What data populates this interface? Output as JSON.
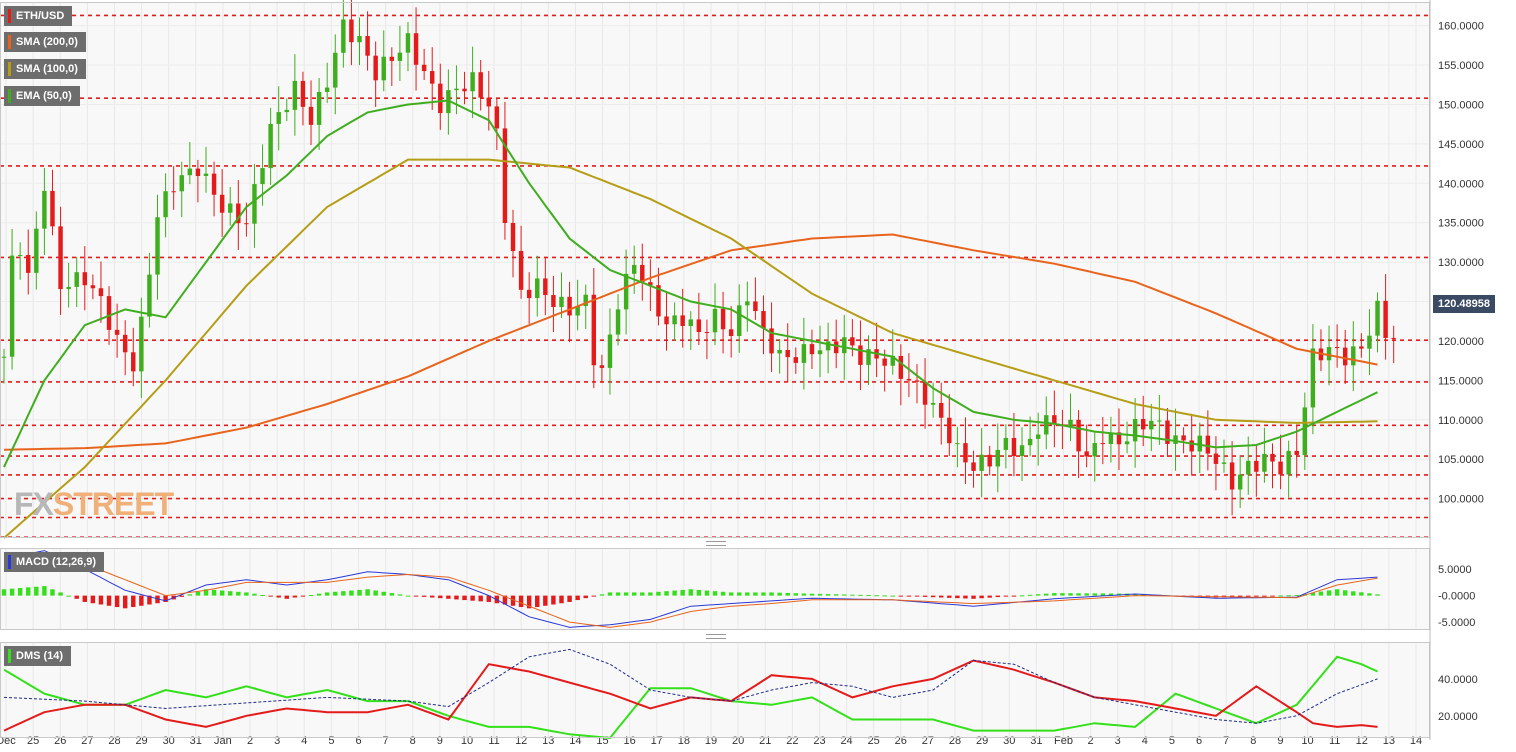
{
  "symbol": "ETH/USD",
  "indicators": {
    "sma200": {
      "label": "SMA (200,0)",
      "color": "#e8641c"
    },
    "sma100": {
      "label": "SMA (100,0)",
      "color": "#b59d16"
    },
    "ema50": {
      "label": "EMA (50,0)",
      "color": "#3fae1e"
    },
    "macd": {
      "label": "MACD (12,26,9)",
      "color_macd": "#2a38d8",
      "color_signal": "#e8641c"
    },
    "dms": {
      "label": "DMS (14)",
      "color_plus": "#33e01a",
      "color_minus": "#e31b1b",
      "color_adx": "#1f2b8a"
    }
  },
  "current_price_label": "120.48958",
  "logo": {
    "part1": "FX",
    "part2": "STREET"
  },
  "chart_data": [
    {
      "type": "candlestick",
      "ylim": [
        95,
        163
      ],
      "y_ticks": [
        "160.0000",
        "155.0000",
        "150.0000",
        "145.0000",
        "140.0000",
        "135.0000",
        "130.0000",
        "125.0000",
        "120.0000",
        "115.0000",
        "110.0000",
        "105.0000",
        "100.0000"
      ],
      "x_ticks": [
        "Dec",
        "25",
        "26",
        "27",
        "28",
        "29",
        "30",
        "31",
        "Jan",
        "2",
        "3",
        "4",
        "5",
        "6",
        "7",
        "8",
        "9",
        "10",
        "11",
        "12",
        "13",
        "14",
        "15",
        "16",
        "17",
        "18",
        "19",
        "20",
        "21",
        "22",
        "23",
        "24",
        "25",
        "26",
        "27",
        "28",
        "29",
        "30",
        "31",
        "Feb",
        "2",
        "3",
        "4",
        "5",
        "6",
        "7",
        "8",
        "9",
        "10",
        "11",
        "12",
        "13",
        "14"
      ],
      "horizontal_levels": [
        161.3,
        150.8,
        142.2,
        130.6,
        120.1,
        114.8,
        109.3,
        105.4,
        103.0,
        100.0,
        97.6,
        95.1
      ],
      "close_anchors": [
        [
          0,
          118
        ],
        [
          1,
          130
        ],
        [
          2,
          132
        ],
        [
          3,
          128
        ],
        [
          5,
          140
        ],
        [
          7,
          127
        ],
        [
          10,
          128
        ],
        [
          12,
          125
        ],
        [
          14,
          120
        ],
        [
          16,
          117
        ],
        [
          17,
          122
        ],
        [
          19,
          136
        ],
        [
          21,
          140
        ],
        [
          24,
          142
        ],
        [
          27,
          137
        ],
        [
          30,
          135
        ],
        [
          33,
          147
        ],
        [
          36,
          152
        ],
        [
          38,
          148
        ],
        [
          40,
          153
        ],
        [
          42,
          160
        ],
        [
          44,
          158
        ],
        [
          46,
          154
        ],
        [
          48,
          156
        ],
        [
          50,
          158
        ],
        [
          52,
          154
        ],
        [
          54,
          150
        ],
        [
          56,
          152
        ],
        [
          58,
          153
        ],
        [
          60,
          150
        ],
        [
          61,
          146
        ],
        [
          62,
          136
        ],
        [
          64,
          126
        ],
        [
          66,
          127
        ],
        [
          68,
          125
        ],
        [
          70,
          124
        ],
        [
          72,
          125
        ],
        [
          73,
          118
        ],
        [
          74,
          116
        ],
        [
          76,
          125
        ],
        [
          78,
          130
        ],
        [
          80,
          126
        ],
        [
          82,
          122
        ],
        [
          84,
          123
        ],
        [
          86,
          121
        ],
        [
          88,
          123
        ],
        [
          90,
          121
        ],
        [
          92,
          126
        ],
        [
          94,
          121
        ],
        [
          96,
          118
        ],
        [
          98,
          118
        ],
        [
          100,
          119
        ],
        [
          102,
          119
        ],
        [
          104,
          120
        ],
        [
          106,
          118
        ],
        [
          108,
          118
        ],
        [
          110,
          117
        ],
        [
          112,
          115
        ],
        [
          114,
          113
        ],
        [
          116,
          110
        ],
        [
          118,
          106
        ],
        [
          120,
          104
        ],
        [
          122,
          105
        ],
        [
          124,
          107
        ],
        [
          126,
          106
        ],
        [
          128,
          109
        ],
        [
          130,
          110
        ],
        [
          132,
          109
        ],
        [
          134,
          105
        ],
        [
          136,
          108
        ],
        [
          138,
          107
        ],
        [
          140,
          109
        ],
        [
          142,
          110
        ],
        [
          144,
          108
        ],
        [
          146,
          107
        ],
        [
          148,
          107
        ],
        [
          150,
          105
        ],
        [
          152,
          102
        ],
        [
          154,
          104
        ],
        [
          156,
          105
        ],
        [
          158,
          104
        ],
        [
          160,
          106
        ],
        [
          162,
          118
        ],
        [
          164,
          119
        ],
        [
          166,
          118
        ],
        [
          168,
          119
        ],
        [
          170,
          124
        ],
        [
          171,
          121
        ],
        [
          172,
          120.5
        ]
      ],
      "sma200_anchors": [
        [
          0,
          106.2
        ],
        [
          10,
          106.4
        ],
        [
          20,
          107.0
        ],
        [
          30,
          109.0
        ],
        [
          40,
          112.0
        ],
        [
          50,
          115.5
        ],
        [
          60,
          120.0
        ],
        [
          70,
          124.0
        ],
        [
          80,
          128.0
        ],
        [
          90,
          131.5
        ],
        [
          100,
          133.0
        ],
        [
          110,
          133.5
        ],
        [
          120,
          131.5
        ],
        [
          130,
          129.8
        ],
        [
          140,
          127.5
        ],
        [
          150,
          123.5
        ],
        [
          160,
          119.0
        ],
        [
          170,
          117.0
        ]
      ],
      "sma100_anchors": [
        [
          0,
          95
        ],
        [
          10,
          104
        ],
        [
          20,
          115
        ],
        [
          30,
          127
        ],
        [
          40,
          137
        ],
        [
          50,
          143
        ],
        [
          60,
          143
        ],
        [
          70,
          142
        ],
        [
          80,
          138
        ],
        [
          90,
          133
        ],
        [
          100,
          126
        ],
        [
          110,
          121
        ],
        [
          120,
          118
        ],
        [
          130,
          115
        ],
        [
          140,
          112
        ],
        [
          150,
          110
        ],
        [
          160,
          109.6
        ],
        [
          170,
          109.8
        ]
      ],
      "ema50_anchors": [
        [
          0,
          104
        ],
        [
          5,
          115
        ],
        [
          10,
          122
        ],
        [
          15,
          124
        ],
        [
          20,
          123
        ],
        [
          25,
          130
        ],
        [
          30,
          137
        ],
        [
          35,
          141
        ],
        [
          40,
          146
        ],
        [
          45,
          149
        ],
        [
          50,
          150
        ],
        [
          55,
          150.5
        ],
        [
          60,
          148
        ],
        [
          65,
          140
        ],
        [
          70,
          133
        ],
        [
          75,
          129
        ],
        [
          80,
          127
        ],
        [
          85,
          125
        ],
        [
          90,
          124
        ],
        [
          95,
          121
        ],
        [
          100,
          120
        ],
        [
          105,
          119
        ],
        [
          110,
          118
        ],
        [
          115,
          114
        ],
        [
          120,
          111
        ],
        [
          125,
          110
        ],
        [
          130,
          109.5
        ],
        [
          135,
          108.5
        ],
        [
          140,
          108
        ],
        [
          145,
          107.3
        ],
        [
          150,
          106.5
        ],
        [
          155,
          106.8
        ],
        [
          160,
          108.5
        ],
        [
          165,
          111
        ],
        [
          170,
          113.5
        ]
      ]
    },
    {
      "type": "line",
      "y_ticks": [
        "5.0000",
        "-0.0000",
        "-5.0000"
      ],
      "ylim": [
        -6.5,
        9
      ],
      "macd_anchors": [
        [
          0,
          7
        ],
        [
          5,
          8.5
        ],
        [
          10,
          5
        ],
        [
          15,
          1
        ],
        [
          20,
          -1
        ],
        [
          25,
          2
        ],
        [
          30,
          3
        ],
        [
          35,
          2
        ],
        [
          40,
          3
        ],
        [
          45,
          4.5
        ],
        [
          50,
          4
        ],
        [
          55,
          3
        ],
        [
          60,
          0
        ],
        [
          65,
          -4
        ],
        [
          70,
          -6
        ],
        [
          75,
          -5.5
        ],
        [
          80,
          -4.5
        ],
        [
          85,
          -2
        ],
        [
          90,
          -1.5
        ],
        [
          95,
          -1
        ],
        [
          100,
          -0.5
        ],
        [
          110,
          -0.8
        ],
        [
          120,
          -2
        ],
        [
          130,
          -0.6
        ],
        [
          140,
          0.3
        ],
        [
          150,
          -0.5
        ],
        [
          160,
          -0.3
        ],
        [
          165,
          3
        ],
        [
          170,
          3.5
        ]
      ],
      "signal_anchors": [
        [
          0,
          6
        ],
        [
          5,
          7
        ],
        [
          10,
          6
        ],
        [
          15,
          3
        ],
        [
          20,
          0
        ],
        [
          25,
          1
        ],
        [
          30,
          2.5
        ],
        [
          35,
          2.5
        ],
        [
          40,
          2.5
        ],
        [
          45,
          3.5
        ],
        [
          50,
          4
        ],
        [
          55,
          3.5
        ],
        [
          60,
          1
        ],
        [
          65,
          -2
        ],
        [
          70,
          -5
        ],
        [
          75,
          -6
        ],
        [
          80,
          -5
        ],
        [
          85,
          -3
        ],
        [
          90,
          -2
        ],
        [
          95,
          -1.5
        ],
        [
          100,
          -0.8
        ],
        [
          110,
          -0.8
        ],
        [
          120,
          -1.5
        ],
        [
          130,
          -1
        ],
        [
          140,
          0
        ],
        [
          150,
          -0.2
        ],
        [
          160,
          -0.4
        ],
        [
          165,
          2
        ],
        [
          170,
          3.3
        ]
      ]
    },
    {
      "type": "line",
      "y_ticks": [
        "40.0000",
        "20.0000"
      ],
      "ylim": [
        8,
        60
      ],
      "plus_anchors": [
        [
          0,
          45
        ],
        [
          5,
          32
        ],
        [
          10,
          26
        ],
        [
          15,
          26
        ],
        [
          20,
          34
        ],
        [
          25,
          30
        ],
        [
          30,
          36
        ],
        [
          35,
          30
        ],
        [
          40,
          34
        ],
        [
          45,
          28
        ],
        [
          50,
          28
        ],
        [
          55,
          20
        ],
        [
          60,
          14
        ],
        [
          65,
          14
        ],
        [
          70,
          10
        ],
        [
          75,
          8
        ],
        [
          80,
          35
        ],
        [
          85,
          35
        ],
        [
          90,
          28
        ],
        [
          95,
          26
        ],
        [
          100,
          30
        ],
        [
          105,
          18
        ],
        [
          110,
          18
        ],
        [
          115,
          18
        ],
        [
          120,
          12
        ],
        [
          125,
          12
        ],
        [
          130,
          12
        ],
        [
          135,
          16
        ],
        [
          140,
          14
        ],
        [
          145,
          32
        ],
        [
          150,
          24
        ],
        [
          155,
          16
        ],
        [
          160,
          26
        ],
        [
          165,
          52
        ],
        [
          168,
          48
        ],
        [
          170,
          44
        ]
      ],
      "minus_anchors": [
        [
          0,
          12
        ],
        [
          5,
          22
        ],
        [
          10,
          26
        ],
        [
          15,
          26
        ],
        [
          20,
          18
        ],
        [
          25,
          14
        ],
        [
          30,
          20
        ],
        [
          35,
          24
        ],
        [
          40,
          22
        ],
        [
          45,
          22
        ],
        [
          50,
          26
        ],
        [
          55,
          18
        ],
        [
          60,
          48
        ],
        [
          65,
          44
        ],
        [
          70,
          38
        ],
        [
          75,
          32
        ],
        [
          80,
          24
        ],
        [
          85,
          30
        ],
        [
          90,
          28
        ],
        [
          95,
          42
        ],
        [
          100,
          40
        ],
        [
          105,
          30
        ],
        [
          110,
          36
        ],
        [
          115,
          40
        ],
        [
          120,
          50
        ],
        [
          125,
          45
        ],
        [
          130,
          38
        ],
        [
          135,
          30
        ],
        [
          140,
          28
        ],
        [
          145,
          24
        ],
        [
          150,
          20
        ],
        [
          155,
          36
        ],
        [
          160,
          22
        ],
        [
          162,
          16
        ],
        [
          165,
          14
        ],
        [
          168,
          15
        ],
        [
          170,
          14
        ]
      ],
      "adx_anchors": [
        [
          0,
          30
        ],
        [
          10,
          28
        ],
        [
          20,
          24
        ],
        [
          30,
          27
        ],
        [
          40,
          30
        ],
        [
          50,
          28
        ],
        [
          55,
          25
        ],
        [
          60,
          38
        ],
        [
          65,
          52
        ],
        [
          70,
          56
        ],
        [
          75,
          48
        ],
        [
          80,
          34
        ],
        [
          85,
          30
        ],
        [
          90,
          28
        ],
        [
          95,
          34
        ],
        [
          100,
          38
        ],
        [
          105,
          36
        ],
        [
          110,
          30
        ],
        [
          115,
          34
        ],
        [
          120,
          50
        ],
        [
          125,
          48
        ],
        [
          130,
          38
        ],
        [
          135,
          30
        ],
        [
          140,
          26
        ],
        [
          145,
          22
        ],
        [
          150,
          18
        ],
        [
          155,
          16
        ],
        [
          160,
          20
        ],
        [
          165,
          32
        ],
        [
          170,
          40
        ]
      ]
    }
  ]
}
